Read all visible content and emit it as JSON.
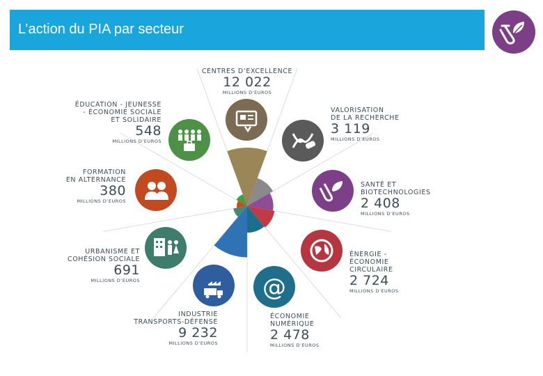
{
  "page": {
    "title": "L’action du PIA par secteur"
  },
  "colors": {
    "title_bar": "#1ba5dd",
    "logo": "#7c3f85"
  },
  "icons": {
    "centres": "certificate-icon",
    "valorisation": "dna-icon",
    "sante": "leaf-test-tube-icon",
    "energie": "globe-icon",
    "numerique": "at-sign-icon",
    "transports": "factory-truck-icon",
    "urbanisme": "building-family-icon",
    "formation": "people-icon",
    "education": "crowd-icon",
    "logo": "leaf-test-tube-icon"
  },
  "chart_data": {
    "type": "pie",
    "title": "L’action du PIA par secteur",
    "unit": "MILLIONS D’EUROS",
    "categories": [
      "CENTRES D’EXCELLENCE",
      "VALORISATION DE LA RECHERCHE",
      "SANTÉ ET BIOTECHNOLOGIES",
      "ÉNERGIE - ÉCONOMIE CIRCULAIRE",
      "ÉCONOMIE NUMÉRIQUE",
      "INDUSTRIE TRANSPORTS-DÉFENSE",
      "URBANISME ET COHÉSION SOCIALE",
      "FORMATION EN ALTERNANCE",
      "ÉDUCATION - JEUNESSE - ÉCONOMIE SOCIALE ET SOLIDAIRE"
    ],
    "values": [
      12022,
      3119,
      2408,
      2724,
      2478,
      9232,
      691,
      380,
      548
    ],
    "display_values": [
      "12 022",
      "3 119",
      "2 408",
      "2 724",
      "2 478",
      "9 232",
      "691",
      "380",
      "548"
    ],
    "colors": [
      "#9a8657",
      "#8a8a8a",
      "#8e4c96",
      "#c23a44",
      "#1b6e8c",
      "#2f73b5",
      "#3c8a7a",
      "#cc4a22",
      "#4a9a45"
    ]
  },
  "labels": {
    "centres": {
      "line1": "CENTRES D’EXCELLENCE",
      "unit": "MILLIONS D’EUROS"
    },
    "valorisation": {
      "line1": "VALORISATION",
      "line2": "DE LA RECHERCHE",
      "unit": "MILLIONS D’EUROS"
    },
    "sante": {
      "line1": "SANTÉ ET",
      "line2": "BIOTECHNOLOGIES",
      "unit": "MILLIONS D’EUROS"
    },
    "energie": {
      "line1": "ÉNERGIE -",
      "line2": "ÉCONOMIE",
      "line3": "CIRCULAIRE",
      "unit": "MILLIONS D’EUROS"
    },
    "numerique": {
      "line1": "ÉCONOMIE",
      "line2": "NUMÉRIQUE",
      "unit": "MILLIONS D’EUROS"
    },
    "transports": {
      "line1": "INDUSTRIE",
      "line2": "TRANSPORTS-DÉFENSE",
      "unit": "MILLIONS D’EUROS"
    },
    "urbanisme": {
      "line1": "URBANISME ET",
      "line2": "COHÉSION SOCIALE",
      "unit": "MILLIONS D’EUROS"
    },
    "formation": {
      "line1": "FORMATION",
      "line2": "EN ALTERNANCE",
      "unit": "MILLIONS D’EUROS"
    },
    "education": {
      "line1": "ÉDUCATION - JEUNESSE",
      "line2": "- ÉCONOMIE SOCIALE",
      "line3": "ET SOLIDAIRE",
      "unit": "MILLIONS D’EUROS"
    }
  }
}
